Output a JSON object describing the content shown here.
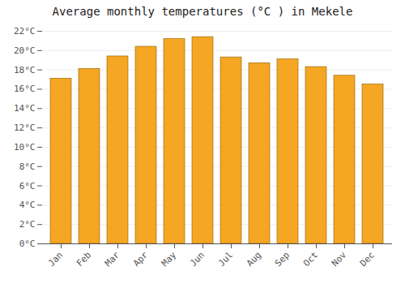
{
  "chart_data": {
    "type": "bar",
    "title": "Average monthly temperatures (°C ) in Mekele",
    "categories": [
      "Jan",
      "Feb",
      "Mar",
      "Apr",
      "May",
      "Jun",
      "Jul",
      "Aug",
      "Sep",
      "Oct",
      "Nov",
      "Dec"
    ],
    "values": [
      17.1,
      18.1,
      19.4,
      20.4,
      21.2,
      21.4,
      19.3,
      18.7,
      19.1,
      18.3,
      17.4,
      16.5
    ],
    "color": "#F5A623",
    "ylim": [
      0,
      22
    ],
    "yticks": [
      {
        "value": 0,
        "label": "0°C"
      },
      {
        "value": 2,
        "label": "2°C"
      },
      {
        "value": 4,
        "label": "4°C"
      },
      {
        "value": 6,
        "label": "6°C"
      },
      {
        "value": 8,
        "label": "8°C"
      },
      {
        "value": 10,
        "label": "10°C"
      },
      {
        "value": 12,
        "label": "12°C"
      },
      {
        "value": 14,
        "label": "14°C"
      },
      {
        "value": 16,
        "label": "16°C"
      },
      {
        "value": 18,
        "label": "18°C"
      },
      {
        "value": 20,
        "label": "20°C"
      },
      {
        "value": 22,
        "label": "22°C"
      }
    ],
    "grid": true
  }
}
